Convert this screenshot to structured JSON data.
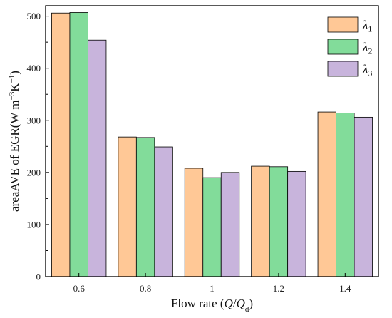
{
  "chart_data": {
    "type": "bar",
    "categories": [
      "0.6",
      "0.8",
      "1",
      "1.2",
      "1.4"
    ],
    "series": [
      {
        "name": "λ1",
        "label_main": "λ",
        "label_sub": "1",
        "color": "#FFC896",
        "values": [
          506,
          268,
          208,
          212,
          316
        ]
      },
      {
        "name": "λ2",
        "label_main": "λ",
        "label_sub": "2",
        "color": "#82DC9A",
        "values": [
          507,
          267,
          190,
          211,
          314
        ]
      },
      {
        "name": "λ3",
        "label_main": "λ",
        "label_sub": "3",
        "color": "#C8B4DC",
        "values": [
          454,
          249,
          200,
          202,
          306
        ]
      }
    ],
    "ylim": [
      0,
      520
    ],
    "yticks": [
      0,
      100,
      200,
      300,
      400,
      500
    ],
    "xlabel": {
      "prefix": "Flow rate (",
      "q": "Q",
      "slash": "/",
      "qd": "Q",
      "qd_sub": "d",
      "suffix": ")"
    },
    "ylabel": {
      "main": "areaAVE of EGR(W m",
      "exp1": "−3",
      "mid": "K",
      "exp2": "−1",
      "end": ")"
    },
    "legend_position": "top-right",
    "grid": false
  }
}
